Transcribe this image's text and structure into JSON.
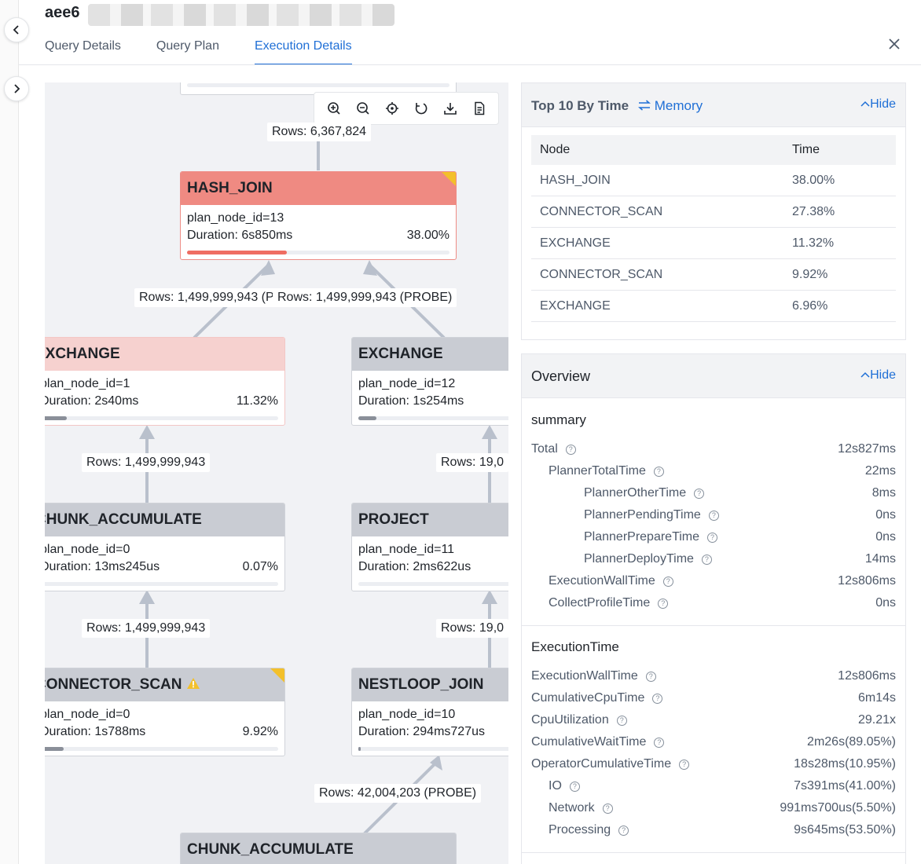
{
  "header": {
    "title": "aee6"
  },
  "tabs": [
    {
      "label": "Query Details"
    },
    {
      "label": "Query Plan"
    },
    {
      "label": "Execution Details"
    }
  ],
  "nodes": {
    "hash_join": {
      "name": "HASH_JOIN",
      "id": "plan_node_id=13",
      "duration": "Duration: 6s850ms",
      "pct": "38.00%",
      "progress": 0.38
    },
    "exchange_left": {
      "name": "EXCHANGE",
      "id": "plan_node_id=1",
      "duration": "Duration: 2s40ms",
      "pct": "11.32%",
      "progress": 0.1132
    },
    "exchange_right": {
      "name": "EXCHANGE",
      "id": "plan_node_id=12",
      "duration": "Duration: 1s254ms",
      "pct": "",
      "progress": 0.07
    },
    "chunk_left": {
      "name": "CHUNK_ACCUMULATE",
      "id": "plan_node_id=0",
      "duration": "Duration: 13ms245us",
      "pct": "0.07%",
      "progress": 0.0007
    },
    "project": {
      "name": "PROJECT",
      "id": "plan_node_id=11",
      "duration": "Duration: 2ms622us",
      "pct": "",
      "progress": 0.0
    },
    "connector_scan": {
      "name": "CONNECTOR_SCAN",
      "id": "plan_node_id=0",
      "duration": "Duration: 1s788ms",
      "pct": "9.92%",
      "progress": 0.0992
    },
    "nestloop_join": {
      "name": "NESTLOOP_JOIN",
      "id": "plan_node_id=10",
      "duration": "Duration: 294ms727us",
      "pct": "",
      "progress": 0.01
    },
    "chunk_bottom": {
      "name": "CHUNK_ACCUMULATE"
    }
  },
  "edge_labels": {
    "top": "Rows: 6,367,824",
    "left_probe": "Rows: 1,499,999,943 (PRO",
    "right_probe": "Rows: 1,499,999,943 (PROBE)",
    "left_mid": "Rows: 1,499,999,943",
    "right_mid": "Rows: 19,0",
    "left_low": "Rows: 1,499,999,943",
    "right_low": "Rows: 19,0",
    "nest_probe": "Rows: 42,004,203 (PROBE)"
  },
  "top10": {
    "title": "Top 10 By Time",
    "switch_label": "Memory",
    "hide_label": "Hide",
    "columns": [
      "Node",
      "Time"
    ],
    "rows": [
      {
        "node": "HASH_JOIN",
        "time": "38.00%"
      },
      {
        "node": "CONNECTOR_SCAN",
        "time": "27.38%"
      },
      {
        "node": "EXCHANGE",
        "time": "11.32%"
      },
      {
        "node": "CONNECTOR_SCAN",
        "time": "9.92%"
      },
      {
        "node": "EXCHANGE",
        "time": "6.96%"
      }
    ]
  },
  "overview": {
    "title": "Overview",
    "hide_label": "Hide",
    "summary_title": "summary",
    "summary": [
      {
        "key": "Total",
        "value": "12s827ms"
      },
      {
        "key": "PlannerTotalTime",
        "value": "22ms"
      },
      {
        "key": "PlannerOtherTime",
        "value": "8ms"
      },
      {
        "key": "PlannerPendingTime",
        "value": "0ns"
      },
      {
        "key": "PlannerPrepareTime",
        "value": "0ns"
      },
      {
        "key": "PlannerDeployTime",
        "value": "14ms"
      },
      {
        "key": "ExecutionWallTime",
        "value": "12s806ms"
      },
      {
        "key": "CollectProfileTime",
        "value": "0ns"
      }
    ],
    "exec_title": "ExecutionTime",
    "exec": [
      {
        "key": "ExecutionWallTime",
        "value": "12s806ms"
      },
      {
        "key": "CumulativeCpuTime",
        "value": "6m14s"
      },
      {
        "key": "CpuUtilization",
        "value": "29.21x"
      },
      {
        "key": "CumulativeWaitTime",
        "value": "2m26s(89.05%)"
      },
      {
        "key": "OperatorCumulativeTime",
        "value": "18s28ms(10.95%)"
      },
      {
        "key": "IO",
        "value": "7s391ms(41.00%)"
      },
      {
        "key": "Network",
        "value": "991ms700us(5.50%)"
      },
      {
        "key": "Processing",
        "value": "9s645ms(53.50%)"
      }
    ]
  }
}
